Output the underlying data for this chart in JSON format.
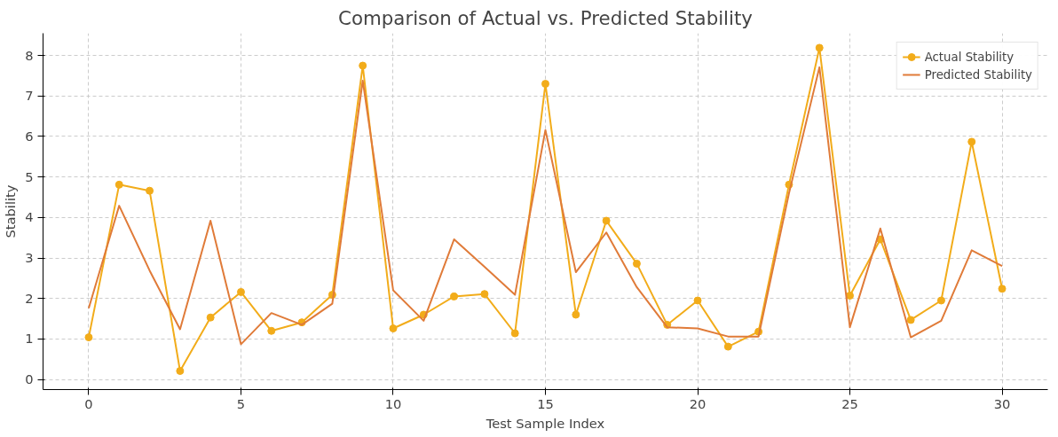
{
  "chart_data": {
    "type": "line",
    "title": "Comparison of Actual vs. Predicted Stability",
    "xlabel": "Test Sample Index",
    "ylabel": "Stability",
    "x": [
      0,
      1,
      2,
      3,
      4,
      5,
      6,
      7,
      8,
      9,
      10,
      11,
      12,
      13,
      14,
      15,
      16,
      17,
      18,
      19,
      20,
      21,
      22,
      23,
      24,
      25,
      26,
      27,
      28,
      29,
      30
    ],
    "series": [
      {
        "name": "Actual Stability",
        "color": "#f2ac1a",
        "marker": "circle",
        "values": [
          1.04,
          4.81,
          4.66,
          0.21,
          1.53,
          2.16,
          1.2,
          1.41,
          2.09,
          7.75,
          1.26,
          1.6,
          2.05,
          2.11,
          1.14,
          7.3,
          1.6,
          3.92,
          2.86,
          1.35,
          1.95,
          0.81,
          1.18,
          4.81,
          8.19,
          2.07,
          3.46,
          1.47,
          1.95,
          5.87,
          2.24
        ]
      },
      {
        "name": "Predicted Stability",
        "color": "#e07b39",
        "marker": "none",
        "values": [
          1.76,
          4.29,
          2.69,
          1.24,
          3.92,
          0.87,
          1.64,
          1.35,
          1.87,
          7.38,
          2.2,
          1.45,
          3.46,
          2.78,
          2.09,
          6.16,
          2.65,
          3.63,
          2.28,
          1.29,
          1.26,
          1.06,
          1.06,
          4.6,
          7.71,
          1.29,
          3.73,
          1.04,
          1.45,
          3.19,
          2.8
        ]
      }
    ],
    "xlim": [
      -1.5,
      31.5
    ],
    "ylim": [
      -0.25,
      8.55
    ],
    "xticks": [
      0,
      5,
      10,
      15,
      20,
      25,
      30
    ],
    "yticks": [
      0,
      1,
      2,
      3,
      4,
      5,
      6,
      7,
      8
    ],
    "grid": true,
    "legend": "top right",
    "line_style": "solid"
  }
}
